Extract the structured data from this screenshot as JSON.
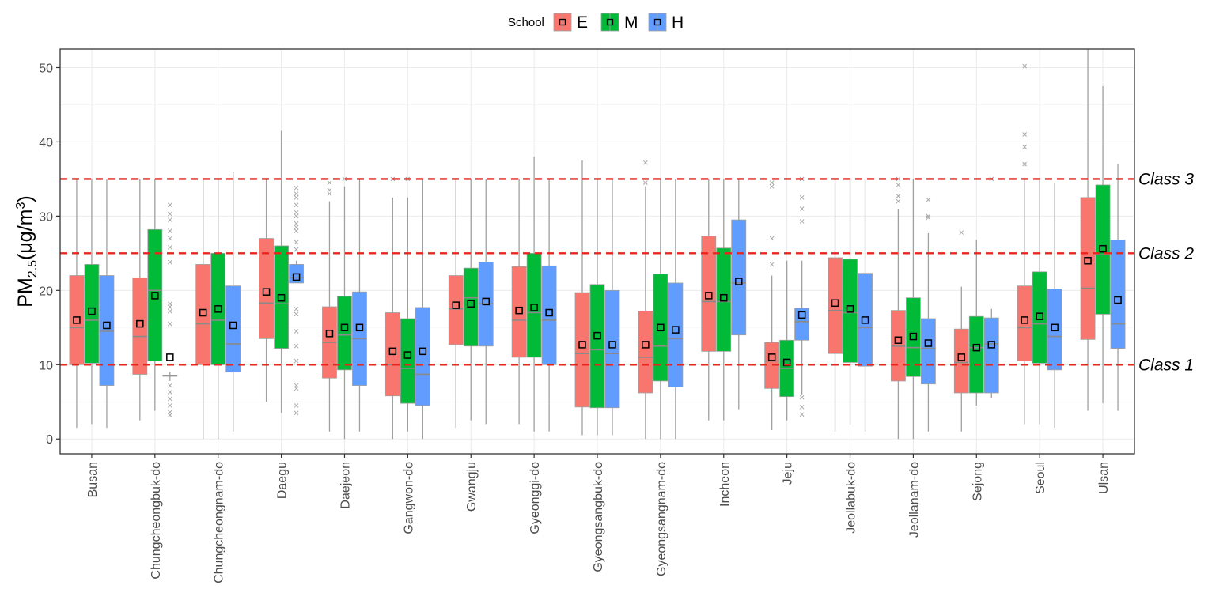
{
  "chart_data": {
    "type": "box",
    "ylabel_main": "PM",
    "ylabel_sub": "2.5",
    "ylabel_unit": "(μg/m",
    "ylabel_sup": "3",
    "ylabel_close": ")",
    "ylim": [
      -2,
      52.5
    ],
    "yticks": [
      0,
      10,
      20,
      30,
      40,
      50
    ],
    "grid": true,
    "legend": {
      "title": "School",
      "placement": "top-center",
      "entries": [
        {
          "name": "E",
          "color": "#F8766D"
        },
        {
          "name": "M",
          "color": "#00BA38"
        },
        {
          "name": "H",
          "color": "#619CFF"
        }
      ]
    },
    "categories": [
      "Busan",
      "Chungcheongbuk-do",
      "Chungcheongnam-do",
      "Daegu",
      "Daejeon",
      "Gangwon-do",
      "Gwangju",
      "Gyeonggi-do",
      "Gyeongsangbuk-do",
      "Gyeongsangnam-do",
      "Incheon",
      "Jeju",
      "Jeollabuk-do",
      "Jeollanam-do",
      "Sejong",
      "Seoul",
      "Ulsan"
    ],
    "thresholds": [
      {
        "label": "Class 1",
        "value": 10
      },
      {
        "label": "Class 2",
        "value": 25
      },
      {
        "label": "Class 3",
        "value": 35
      }
    ],
    "series": [
      {
        "name": "E",
        "color": "#F8766D",
        "boxes": [
          {
            "min": 1.5,
            "q1": 10,
            "median": 15,
            "q3": 22,
            "max": 35,
            "mean": 16,
            "outliers": []
          },
          {
            "min": 2.5,
            "q1": 8.7,
            "median": 13.8,
            "q3": 21.7,
            "max": 35,
            "mean": 15.5,
            "outliers": []
          },
          {
            "min": 0,
            "q1": 10,
            "median": 15.5,
            "q3": 23.5,
            "max": 35,
            "mean": 17,
            "outliers": []
          },
          {
            "min": 5,
            "q1": 13.5,
            "median": 18.3,
            "q3": 27,
            "max": 35,
            "mean": 19.8,
            "outliers": []
          },
          {
            "min": 1,
            "q1": 8.2,
            "median": 13,
            "q3": 17.8,
            "max": 32,
            "mean": 14.2,
            "outliers": [
              33,
              33.5,
              34.5
            ]
          },
          {
            "min": 0,
            "q1": 5.8,
            "median": 10,
            "q3": 17,
            "max": 32.5,
            "mean": 11.8,
            "outliers": [
              35
            ]
          },
          {
            "min": 1.5,
            "q1": 12.7,
            "median": 17.5,
            "q3": 22,
            "max": 35,
            "mean": 18,
            "outliers": []
          },
          {
            "min": 2,
            "q1": 11,
            "median": 16,
            "q3": 23.2,
            "max": 35,
            "mean": 17.3,
            "outliers": []
          },
          {
            "min": 0.5,
            "q1": 4.3,
            "median": 11.5,
            "q3": 19.7,
            "max": 37.5,
            "mean": 12.7,
            "outliers": []
          },
          {
            "min": 0,
            "q1": 6.2,
            "median": 11,
            "q3": 17.2,
            "max": 34,
            "mean": 12.7,
            "outliers": [
              34.5,
              37.2
            ]
          },
          {
            "min": 2.5,
            "q1": 11.8,
            "median": 18.5,
            "q3": 27.3,
            "max": 35,
            "mean": 19.3,
            "outliers": []
          },
          {
            "min": 1.2,
            "q1": 6.8,
            "median": 10.5,
            "q3": 13,
            "max": 22,
            "mean": 11,
            "outliers": [
              23.5,
              27,
              34,
              34.5
            ]
          },
          {
            "min": 1,
            "q1": 11.5,
            "median": 17.3,
            "q3": 24.4,
            "max": 35,
            "mean": 18.3,
            "outliers": []
          },
          {
            "min": 0,
            "q1": 7.8,
            "median": 12.5,
            "q3": 17.3,
            "max": 31,
            "mean": 13.3,
            "outliers": [
              32,
              32.7,
              34.2,
              35
            ]
          },
          {
            "min": 1,
            "q1": 6.2,
            "median": 10.3,
            "q3": 14.8,
            "max": 20.5,
            "mean": 11,
            "outliers": [
              27.8
            ]
          },
          {
            "min": 2,
            "q1": 10.5,
            "median": 15,
            "q3": 20.6,
            "max": 35,
            "mean": 16,
            "outliers": [
              37,
              39.3,
              41,
              50.2
            ]
          },
          {
            "min": 3.8,
            "q1": 13.4,
            "median": 20.3,
            "q3": 32.5,
            "max": 52.5,
            "mean": 24,
            "outliers": []
          }
        ]
      },
      {
        "name": "M",
        "color": "#00BA38",
        "boxes": [
          {
            "min": 2,
            "q1": 10.2,
            "median": 16,
            "q3": 23.5,
            "max": 35,
            "mean": 17.2,
            "outliers": []
          },
          {
            "min": 3.8,
            "q1": 10.5,
            "median": 20,
            "q3": 28.2,
            "max": 35,
            "mean": 19.3,
            "outliers": []
          },
          {
            "min": 0,
            "q1": 10,
            "median": 16,
            "q3": 25,
            "max": 35,
            "mean": 17.5,
            "outliers": []
          },
          {
            "min": 3.5,
            "q1": 12.2,
            "median": 18.2,
            "q3": 26,
            "max": 41.5,
            "mean": 19,
            "outliers": []
          },
          {
            "min": 0,
            "q1": 9.3,
            "median": 14,
            "q3": 19.2,
            "max": 34,
            "mean": 15,
            "outliers": [
              35
            ]
          },
          {
            "min": 1,
            "q1": 4.8,
            "median": 9.5,
            "q3": 16.2,
            "max": 32.5,
            "mean": 11.3,
            "outliers": [
              35
            ]
          },
          {
            "min": 2.5,
            "q1": 12.5,
            "median": 19,
            "q3": 23,
            "max": 35,
            "mean": 18.2,
            "outliers": []
          },
          {
            "min": 1,
            "q1": 11,
            "median": 17,
            "q3": 25,
            "max": 38,
            "mean": 17.7,
            "outliers": []
          },
          {
            "min": 0.5,
            "q1": 4.2,
            "median": 12,
            "q3": 20.8,
            "max": 35,
            "mean": 13.9,
            "outliers": []
          },
          {
            "min": 0,
            "q1": 7.8,
            "median": 12.5,
            "q3": 22.2,
            "max": 35,
            "mean": 15,
            "outliers": []
          },
          {
            "min": 2.5,
            "q1": 11.8,
            "median": 18.5,
            "q3": 25.7,
            "max": 35,
            "mean": 19,
            "outliers": []
          },
          {
            "min": 2.5,
            "q1": 5.7,
            "median": 9.5,
            "q3": 13.3,
            "max": 24,
            "mean": 10.3,
            "outliers": []
          },
          {
            "min": 2,
            "q1": 10.3,
            "median": 17,
            "q3": 24.2,
            "max": 35,
            "mean": 17.5,
            "outliers": []
          },
          {
            "min": 0,
            "q1": 8.4,
            "median": 12.3,
            "q3": 19,
            "max": 35,
            "mean": 13.8,
            "outliers": []
          },
          {
            "min": 4.5,
            "q1": 6.2,
            "median": 12.3,
            "q3": 16.5,
            "max": 26.8,
            "mean": 12.3,
            "outliers": []
          },
          {
            "min": 2,
            "q1": 10.2,
            "median": 15.5,
            "q3": 22.5,
            "max": 35,
            "mean": 16.5,
            "outliers": []
          },
          {
            "min": 4.8,
            "q1": 16.8,
            "median": 24.8,
            "q3": 34.2,
            "max": 47.5,
            "mean": 25.6,
            "outliers": []
          }
        ]
      },
      {
        "name": "H",
        "color": "#619CFF",
        "boxes": [
          {
            "min": 1.5,
            "q1": 7.2,
            "median": 14.5,
            "q3": 22,
            "max": 35,
            "mean": 15.3,
            "outliers": []
          },
          {
            "min": 7.8,
            "q1": 8.5,
            "median": 8.5,
            "q3": 8.6,
            "max": 9,
            "mean": 11,
            "outliers": [
              3.2,
              3.6,
              4.5,
              5.4,
              6.3,
              7.2,
              15.5,
              17.2,
              17.8,
              18.2,
              23.8,
              25.8,
              27,
              28,
              29.5,
              30.3,
              31.5
            ]
          },
          {
            "min": 1,
            "q1": 9,
            "median": 12.8,
            "q3": 20.6,
            "max": 36,
            "mean": 15.3,
            "outliers": []
          },
          {
            "min": 21,
            "q1": 21,
            "median": 21.7,
            "q3": 23.5,
            "max": 24,
            "mean": 21.8,
            "outliers": [
              3.5,
              4.5,
              6.8,
              7.2,
              10.5,
              12.5,
              14.5,
              16.8,
              17.5,
              25.5,
              26.5,
              28,
              28.5,
              29,
              30,
              30.5,
              31.5,
              32.5,
              33,
              33.8
            ]
          },
          {
            "min": 1,
            "q1": 7.2,
            "median": 13.5,
            "q3": 19.8,
            "max": 35,
            "mean": 15,
            "outliers": []
          },
          {
            "min": 0,
            "q1": 4.5,
            "median": 8.7,
            "q3": 17.7,
            "max": 35,
            "mean": 11.8,
            "outliers": []
          },
          {
            "min": 2,
            "q1": 12.5,
            "median": 18.2,
            "q3": 23.8,
            "max": 35,
            "mean": 18.5,
            "outliers": []
          },
          {
            "min": 1,
            "q1": 10,
            "median": 16,
            "q3": 23.3,
            "max": 35,
            "mean": 17,
            "outliers": []
          },
          {
            "min": 0.5,
            "q1": 4.2,
            "median": 11.5,
            "q3": 20,
            "max": 35,
            "mean": 12.7,
            "outliers": []
          },
          {
            "min": 0,
            "q1": 7,
            "median": 13.5,
            "q3": 21,
            "max": 35,
            "mean": 14.7,
            "outliers": []
          },
          {
            "min": 4,
            "q1": 14,
            "median": 21,
            "q3": 29.5,
            "max": 35,
            "mean": 21.2,
            "outliers": []
          },
          {
            "min": 6,
            "q1": 13.3,
            "median": 15.8,
            "q3": 17.6,
            "max": 24,
            "mean": 16.7,
            "outliers": [
              3.3,
              4.3,
              5.6,
              29.3,
              31,
              32.5,
              35
            ]
          },
          {
            "min": 1,
            "q1": 9.8,
            "median": 15,
            "q3": 22.3,
            "max": 35,
            "mean": 16,
            "outliers": []
          },
          {
            "min": 1,
            "q1": 7.4,
            "median": 12.2,
            "q3": 16.2,
            "max": 27.7,
            "mean": 12.9,
            "outliers": [
              29.8,
              30,
              32.2
            ]
          },
          {
            "min": 5.5,
            "q1": 6.2,
            "median": 12.8,
            "q3": 16.3,
            "max": 17.5,
            "mean": 12.7,
            "outliers": [
              35
            ]
          },
          {
            "min": 1.5,
            "q1": 9.3,
            "median": 13.8,
            "q3": 20.2,
            "max": 34.5,
            "mean": 15,
            "outliers": []
          },
          {
            "min": 3.8,
            "q1": 12.2,
            "median": 15.5,
            "q3": 26.8,
            "max": 37,
            "mean": 18.7,
            "outliers": []
          }
        ]
      }
    ]
  }
}
